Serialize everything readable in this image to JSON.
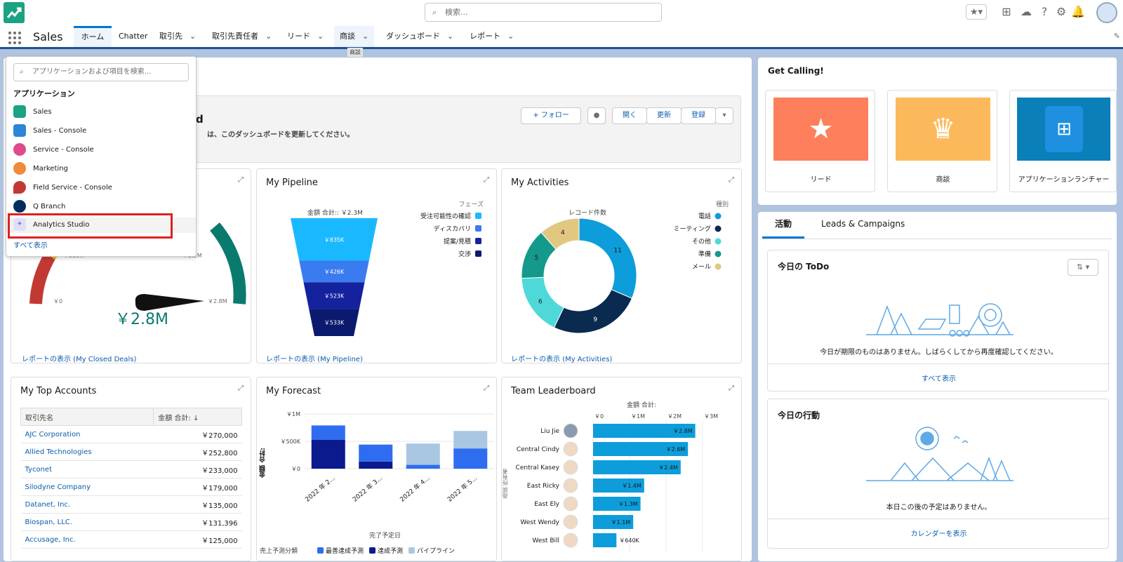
{
  "header": {
    "search_placeholder": "検索...",
    "app_name": "Sales"
  },
  "nav": {
    "tabs": [
      {
        "label": "ホーム",
        "has_menu": false,
        "active": true
      },
      {
        "label": "Chatter",
        "has_menu": false
      },
      {
        "label": "取引先",
        "has_menu": true
      },
      {
        "label": "取引先責任者",
        "has_menu": true
      },
      {
        "label": "リード",
        "has_menu": true
      },
      {
        "label": "商談",
        "has_menu": true
      },
      {
        "label": "ダッシュボード",
        "has_menu": true
      },
      {
        "label": "レポート",
        "has_menu": true
      }
    ],
    "tooltip": "商談"
  },
  "app_launcher": {
    "search_placeholder": "アプリケーションおよび項目を検索...",
    "section": "アプリケーション",
    "items": [
      {
        "label": "Sales",
        "color": "#1ba283"
      },
      {
        "label": "Sales - Console",
        "color": "#2e84d6"
      },
      {
        "label": "Service - Console",
        "color": "#e04a8a"
      },
      {
        "label": "Marketing",
        "color": "#f08a3c"
      },
      {
        "label": "Field Service - Console",
        "color": "#c23934"
      },
      {
        "label": "Q Branch",
        "color": "#032d60"
      },
      {
        "label": "Analytics Studio",
        "color": "#a1a1f0"
      }
    ],
    "show_all": "すべて表示"
  },
  "dashboard": {
    "title_fragment": "d",
    "subtitle_fragment": "は、このダッシュボードを更新してください。",
    "buttons": {
      "follow": "+ フォロー",
      "open": "開く",
      "refresh": "更新",
      "subscribe": "登録"
    }
  },
  "closed_deals": {
    "link": "レポートの表示 (My Closed Deals)",
    "value": "￥2.8M",
    "ticks": {
      "zero": "￥0",
      "t555": "￥555K",
      "t22": "￥2.2M",
      "t28": "￥2.8M"
    }
  },
  "pipeline": {
    "title": "My Pipeline",
    "subtitle": "金額 合計:: ￥2.3M",
    "legend_title": "フェーズ",
    "link": "レポートの表示 (My Pipeline)",
    "chart_data": {
      "type": "funnel",
      "categories": [
        "受注可能性の確認",
        "ディスカバリ",
        "提案/見積",
        "交渉"
      ],
      "values": [
        835,
        426,
        523,
        533
      ],
      "labels": [
        "￥835K",
        "￥426K",
        "￥523K",
        "￥533K"
      ],
      "colors": [
        "#1ab9ff",
        "#3b7bf0",
        "#15229e",
        "#0b1a6e"
      ]
    }
  },
  "activities": {
    "title": "My Activities",
    "subtitle": "レコード件数",
    "legend_title": "種別",
    "link": "レポートの表示 (My Activities)",
    "chart_data": {
      "type": "donut",
      "categories": [
        "電話",
        "ミーティング",
        "その他",
        "準備",
        "メール"
      ],
      "values": [
        11,
        9,
        6,
        5,
        4
      ],
      "colors": [
        "#0d9dda",
        "#0b2a50",
        "#4fd8d8",
        "#14998a",
        "#e2c780"
      ]
    }
  },
  "top_accounts": {
    "title": "My Top Accounts",
    "columns": [
      "取引先名",
      "金額 合計: ↓"
    ],
    "rows": [
      [
        "AJC Corporation",
        "￥270,000"
      ],
      [
        "Allied Technologies",
        "￥252,800"
      ],
      [
        "Tyconet",
        "￥233,000"
      ],
      [
        "Silodyne Company",
        "￥179,000"
      ],
      [
        "Datanet, Inc.",
        "￥135,000"
      ],
      [
        "Biospan, LLC.",
        "￥131,396"
      ],
      [
        "Accusage, Inc.",
        "￥125,000"
      ]
    ]
  },
  "forecast": {
    "title": "My Forecast",
    "ylabel": "金額 合計:",
    "xlabel": "完了予定日",
    "legend_title": "売上予測分類",
    "chart_data": {
      "type": "bar",
      "stacked": true,
      "categories": [
        "2022 年 2...",
        "2022 年 3...",
        "2022 年 4...",
        "2022 年 5..."
      ],
      "yticks": [
        "￥1M",
        "￥500K",
        "￥0"
      ],
      "ylim": [
        0,
        1000
      ],
      "series": [
        {
          "name": "達成予測",
          "color": "#0b1a8c",
          "values": [
            530,
            130,
            0,
            0
          ]
        },
        {
          "name": "最善達成予測",
          "color": "#2f6df0",
          "values": [
            260,
            310,
            70,
            370
          ]
        },
        {
          "name": "パイプライン",
          "color": "#a9c7e3",
          "values": [
            0,
            0,
            390,
            320
          ]
        }
      ]
    }
  },
  "leaderboard": {
    "title": "Team Leaderboard",
    "subtitle": "金額 合計:",
    "ylabel": "商談 所有者",
    "chart_data": {
      "type": "bar",
      "orientation": "horizontal",
      "xticks": [
        "￥0",
        "￥1M",
        "￥2M",
        "￥3M"
      ],
      "xlim": [
        0,
        3
      ],
      "categories": [
        "Liu Jie",
        "Central Cindy",
        "Central Kasey",
        "East Ricky",
        "East Ely",
        "West Wendy",
        "West Bill"
      ],
      "values": [
        2.8,
        2.6,
        2.4,
        1.4,
        1.3,
        1.1,
        0.64
      ],
      "labels": [
        "￥2.8M",
        "￥2.6M",
        "￥2.4M",
        "￥1.4M",
        "￥1.3M",
        "￥1.1M",
        "￥640K"
      ],
      "color": "#0d9dda"
    }
  },
  "get_calling": {
    "title": "Get Calling!",
    "tiles": [
      {
        "label": "リード",
        "color": "#fe7f5c",
        "icon": "lead-icon"
      },
      {
        "label": "商談",
        "color": "#fcb95b",
        "icon": "crown-icon"
      },
      {
        "label": "アプリケーションランチャー",
        "color": "#0a7fb8",
        "icon": "app-grid-icon"
      }
    ]
  },
  "activity_panel": {
    "tabs": [
      "活動",
      "Leads & Campaigns"
    ],
    "todo": {
      "title": "今日の ToDo",
      "empty": "今日が期限のものはありません。しばらくしてから再度確認してください。",
      "link": "すべて表示"
    },
    "events": {
      "title": "今日の行動",
      "empty": "本日この後の予定はありません。",
      "link": "カレンダーを表示"
    }
  }
}
